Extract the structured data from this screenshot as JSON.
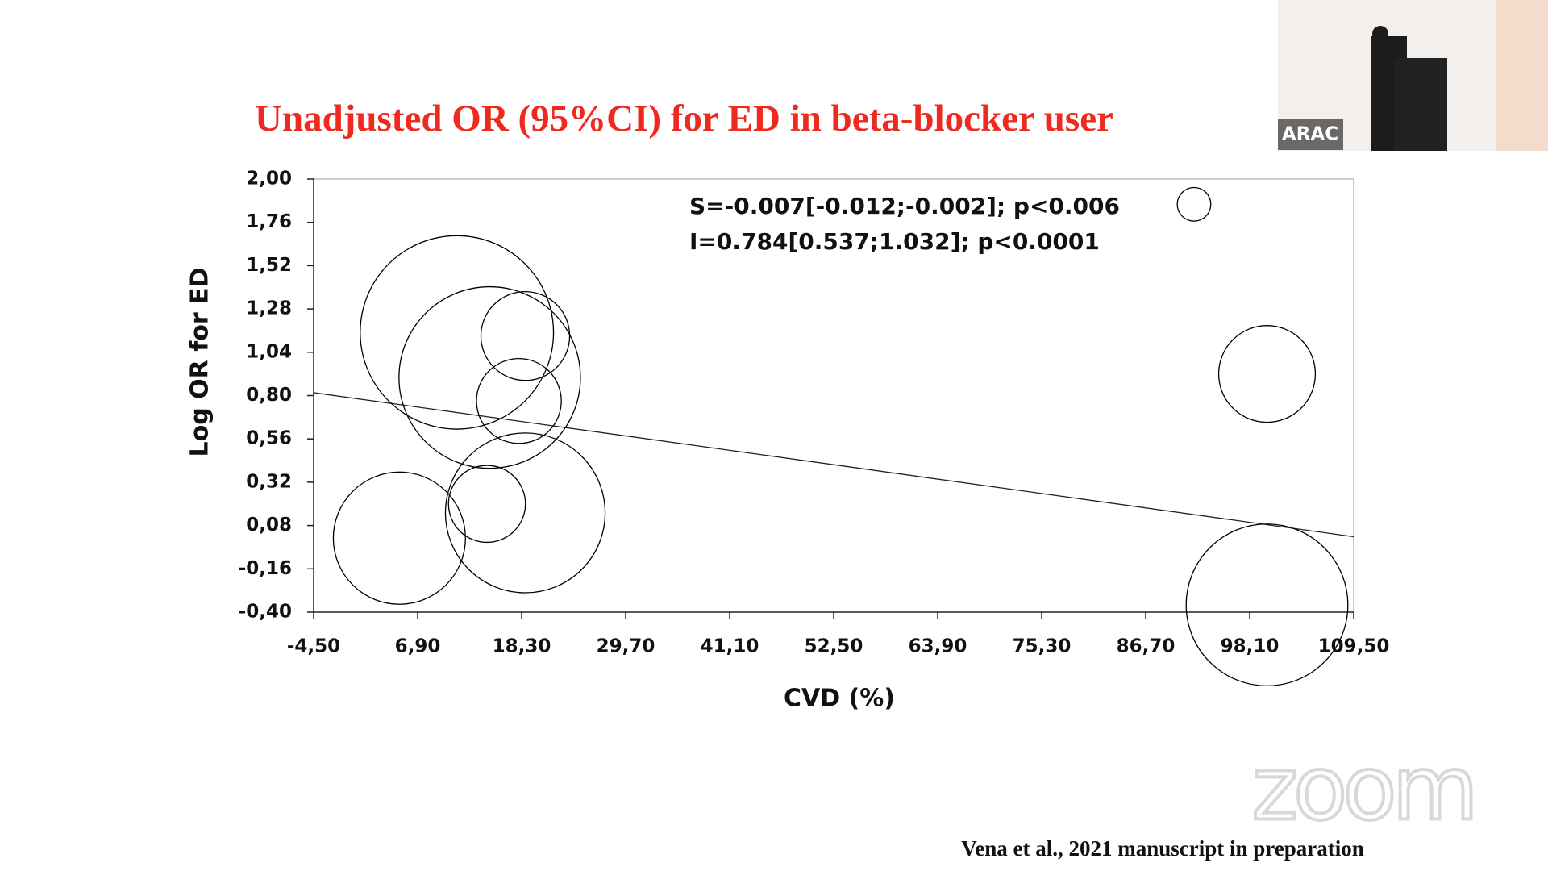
{
  "chart_data": {
    "type": "bubble",
    "title": "Unadjusted OR (95%CI) for ED in beta-blocker user",
    "x_label": "CVD (%)",
    "y_label": "Log OR for ED",
    "annotations": [
      "S=-0.007[-0.012;-0.002]; p<0.006",
      "I=0.784[0.537;1.032]; p<0.0001"
    ],
    "x": [
      92.0,
      100.0,
      100.0,
      11.2,
      14.8,
      18.7,
      18.0,
      18.7,
      14.5,
      4.9
    ],
    "values": [
      1.86,
      0.92,
      -0.36,
      1.15,
      0.9,
      1.13,
      0.77,
      0.15,
      0.2,
      0.01
    ],
    "sizes": [
      17,
      49,
      82,
      98,
      92,
      45,
      43,
      81,
      39,
      67
    ],
    "color": "#000000",
    "trendline": {
      "x": [
        -4.5,
        109.5
      ],
      "y": [
        0.816,
        0.018
      ]
    },
    "xlim": [
      -4.5,
      109.5
    ],
    "xticks": [
      {
        "value": -4.5,
        "label": "-4,50"
      },
      {
        "value": 6.9,
        "label": "6,90"
      },
      {
        "value": 18.3,
        "label": "18,30"
      },
      {
        "value": 29.7,
        "label": "29,70"
      },
      {
        "value": 41.1,
        "label": "41,10"
      },
      {
        "value": 52.5,
        "label": "52,50"
      },
      {
        "value": 63.9,
        "label": "63,90"
      },
      {
        "value": 75.3,
        "label": "75,30"
      },
      {
        "value": 86.7,
        "label": "86,70"
      },
      {
        "value": 98.1,
        "label": "98,10"
      },
      {
        "value": 109.5,
        "label": "109,50"
      }
    ],
    "ylim": [
      -0.4,
      2.0
    ],
    "yticks": [
      {
        "value": 2.0,
        "label": "2,00"
      },
      {
        "value": 1.76,
        "label": "1,76"
      },
      {
        "value": 1.52,
        "label": "1,52"
      },
      {
        "value": 1.28,
        "label": "1,28"
      },
      {
        "value": 1.04,
        "label": "1,04"
      },
      {
        "value": 0.8,
        "label": "0,80"
      },
      {
        "value": 0.56,
        "label": "0,56"
      },
      {
        "value": 0.32,
        "label": "0,32"
      },
      {
        "value": 0.08,
        "label": "0,08"
      },
      {
        "value": -0.16,
        "label": "-0,16"
      },
      {
        "value": -0.4,
        "label": "-0,40"
      }
    ],
    "grid": false
  },
  "citation": "Vena  et al., 2021 manuscript in preparation",
  "overlay": {
    "speaker_label": "ARAC",
    "watermark": "zoom"
  }
}
